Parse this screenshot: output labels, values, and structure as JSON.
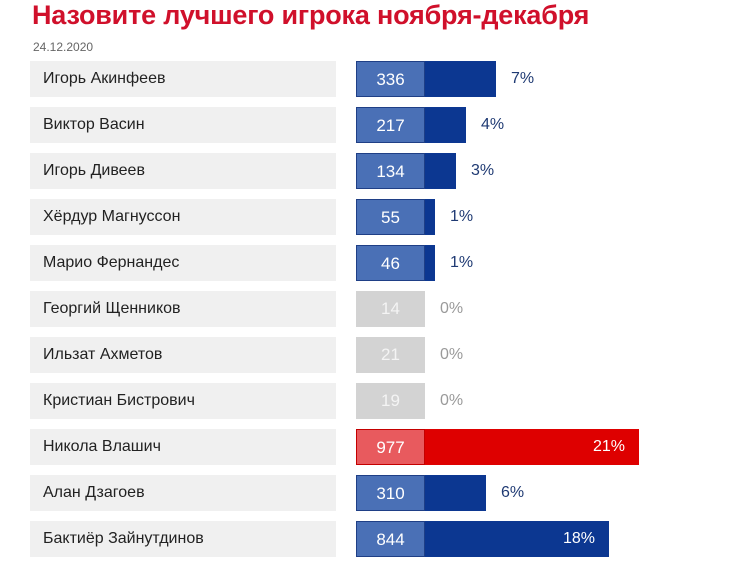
{
  "header": {
    "title": "Назовите лучшего игрока ноября-декабря",
    "date": "24.12.2020"
  },
  "colors": {
    "title": "#d0102b",
    "bar_normal": "#0c3791",
    "count_normal": "#4a70b6",
    "count_low": "#d3d3d3",
    "bar_leader": "#de0000",
    "count_leader": "#e85a5e"
  },
  "chart_data": {
    "type": "bar",
    "orientation": "horizontal",
    "categories": [
      "Игорь Акинфеев",
      "Виктор Васин",
      "Игорь Дивеев",
      "Хёрдур Магнуссон",
      "Марио Фернандес",
      "Георгий Щенников",
      "Ильзат Ахметов",
      "Кристиан Бистрович",
      "Никола Влашич",
      "Алан Дзагоев",
      "Бактиёр Зайнутдинов"
    ],
    "votes": [
      336,
      217,
      134,
      55,
      46,
      14,
      21,
      19,
      977,
      310,
      844
    ],
    "percent_labels": [
      "7%",
      "4%",
      "3%",
      "1%",
      "1%",
      "0%",
      "0%",
      "0%",
      "21%",
      "6%",
      "18%"
    ],
    "percent_values": [
      7,
      4,
      3,
      1,
      1,
      0,
      0,
      0,
      21,
      6,
      18
    ]
  }
}
